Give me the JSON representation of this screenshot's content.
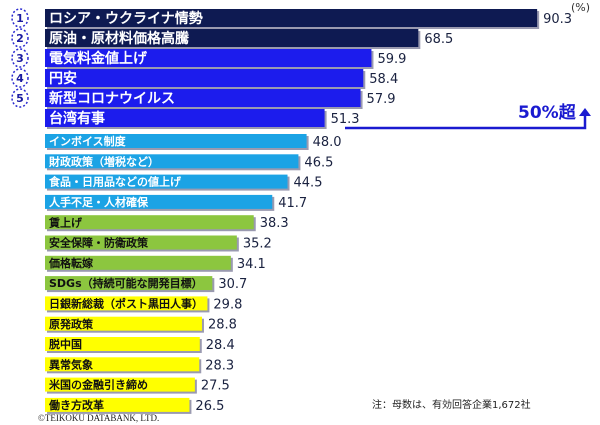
{
  "chart_data": {
    "type": "bar",
    "orientation": "horizontal",
    "unit_label": "(%)",
    "categories": [
      "ロシア・ウクライナ情勢",
      "原油・原材料価格高騰",
      "電気料金値上げ",
      "円安",
      "新型コロナウイルス",
      "台湾有事",
      "インボイス制度",
      "財政政策（増税など）",
      "食品・日用品などの値上げ",
      "人手不足・人材確保",
      "賃上げ",
      "安全保障・防衛政策",
      "価格転嫁",
      "SDGs（持続可能な開発目標）",
      "日銀新総裁（ポスト黒田人事）",
      "原発政策",
      "脱中国",
      "異常気象",
      "米国の金融引き締め",
      "働き方改革"
    ],
    "values": [
      90.3,
      68.5,
      59.9,
      58.4,
      57.9,
      51.3,
      48.0,
      46.5,
      44.5,
      41.7,
      38.3,
      35.2,
      34.1,
      30.7,
      29.8,
      28.8,
      28.4,
      28.3,
      27.5,
      26.5
    ],
    "value_labels": [
      "90.3",
      "68.5",
      "59.9",
      "58.4",
      "57.9",
      "51.3",
      "48.0",
      "46.5",
      "44.5",
      "41.7",
      "38.3",
      "35.2",
      "34.1",
      "30.7",
      "29.8",
      "28.8",
      "28.4",
      "28.3",
      "27.5",
      "26.5"
    ],
    "ranks": [
      "1",
      "2",
      "3",
      "4",
      "5"
    ],
    "bar_colors": [
      "#0e1a52",
      "#0e1a52",
      "#1c1ced",
      "#1c1ced",
      "#1c1ced",
      "#1c1ced",
      "#1ba3e5",
      "#1ba3e5",
      "#1ba3e5",
      "#1ba3e5",
      "#8cc63f",
      "#8cc63f",
      "#8cc63f",
      "#8cc63f",
      "#ffff00",
      "#ffff00",
      "#ffff00",
      "#ffff00",
      "#ffff00",
      "#ffff00"
    ],
    "label_colors": [
      "#ffffff",
      "#ffffff",
      "#ffffff",
      "#ffffff",
      "#ffffff",
      "#ffffff",
      "#ffffff",
      "#ffffff",
      "#ffffff",
      "#ffffff",
      "#111111",
      "#111111",
      "#111111",
      "#111111",
      "#111111",
      "#111111",
      "#111111",
      "#111111",
      "#111111",
      "#111111"
    ],
    "annotation": "50%超",
    "xlim": [
      0,
      100
    ],
    "grid": false,
    "legend": "none"
  },
  "note": "注：母数は、有効回答企業1,672社",
  "copyright": "©TEIKOKU DATABANK, LTD."
}
